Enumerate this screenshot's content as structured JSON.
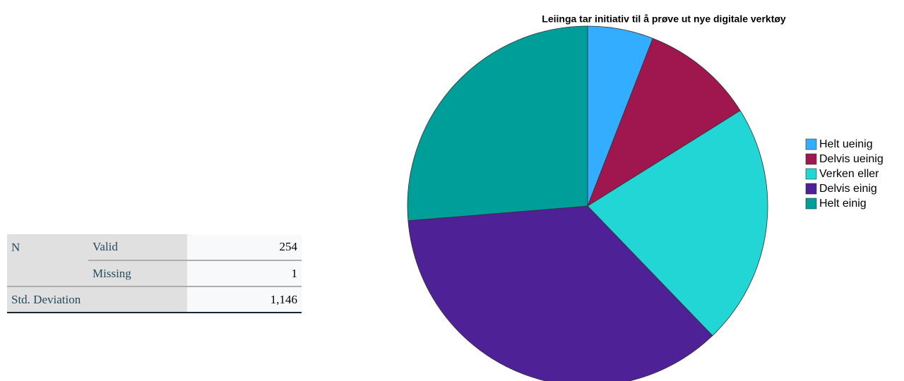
{
  "table": {
    "rows": [
      [
        "N",
        "Valid",
        "254"
      ],
      [
        "",
        "Missing",
        "1"
      ],
      [
        "Std. Deviation",
        "",
        "1,146"
      ]
    ]
  },
  "chart_data": {
    "type": "pie",
    "title": "Leiinga tar initiativ til å prøve ut nye digitale verktøy",
    "categories": [
      "Helt ueinig",
      "Delvis ueinig",
      "Verken eller",
      "Delvis einig",
      "Helt einig"
    ],
    "values": [
      5.9,
      10.2,
      21.7,
      35.9,
      26.3
    ],
    "colors": [
      "#33adff",
      "#a0174f",
      "#22d6d6",
      "#4f2196",
      "#009e99"
    ],
    "legend": "right"
  }
}
